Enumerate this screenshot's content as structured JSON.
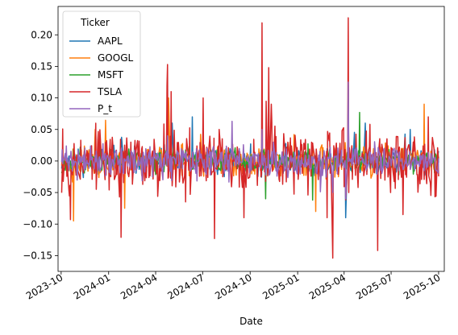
{
  "chart_data": {
    "type": "line",
    "xlabel": "Date",
    "ylabel": "",
    "legend_title": "Ticker",
    "legend_position": "top-left",
    "grid": false,
    "xlim": [
      "2023-09-25",
      "2025-10-12"
    ],
    "ylim": [
      -0.175,
      0.245
    ],
    "x_ticks": [
      {
        "date": "2023-10-01",
        "label": "2023-10"
      },
      {
        "date": "2024-01-01",
        "label": "2024-01"
      },
      {
        "date": "2024-04-01",
        "label": "2024-04"
      },
      {
        "date": "2024-07-01",
        "label": "2024-07"
      },
      {
        "date": "2024-10-01",
        "label": "2024-10"
      },
      {
        "date": "2025-01-01",
        "label": "2025-01"
      },
      {
        "date": "2025-04-01",
        "label": "2025-04"
      },
      {
        "date": "2025-07-01",
        "label": "2025-07"
      },
      {
        "date": "2025-10-01",
        "label": "2025-10"
      }
    ],
    "y_ticks": [
      {
        "value": -0.15,
        "label": "−0.15"
      },
      {
        "value": -0.1,
        "label": "−0.10"
      },
      {
        "value": -0.05,
        "label": "−0.05"
      },
      {
        "value": 0.0,
        "label": "0.00"
      },
      {
        "value": 0.05,
        "label": "0.05"
      },
      {
        "value": 0.1,
        "label": "0.10"
      },
      {
        "value": 0.15,
        "label": "0.15"
      },
      {
        "value": 0.2,
        "label": "0.20"
      }
    ],
    "series": [
      {
        "name": "AAPL",
        "color": "#1f77b4",
        "amp": 0.012,
        "seed": 11,
        "spikes": [
          [
            "2024-05-03",
            0.06
          ],
          [
            "2025-04-09",
            0.12
          ],
          [
            "2025-04-04",
            -0.09
          ],
          [
            "2025-08-07",
            0.05
          ],
          [
            "2024-06-11",
            0.07
          ],
          [
            "2025-05-12",
            0.06
          ]
        ]
      },
      {
        "name": "GOOGL",
        "color": "#ff7f0e",
        "amp": 0.014,
        "seed": 23,
        "spikes": [
          [
            "2023-10-25",
            -0.095
          ],
          [
            "2024-02-01",
            -0.075
          ],
          [
            "2024-04-26",
            0.1
          ],
          [
            "2025-02-05",
            -0.08
          ],
          [
            "2025-04-09",
            0.1
          ],
          [
            "2025-09-03",
            0.09
          ],
          [
            "2023-12-06",
            0.05
          ],
          [
            "2024-07-24",
            -0.05
          ]
        ]
      },
      {
        "name": "MSFT",
        "color": "#2ca02c",
        "amp": 0.011,
        "seed": 37,
        "spikes": [
          [
            "2024-10-31",
            -0.06
          ],
          [
            "2025-05-01",
            0.077
          ],
          [
            "2025-04-09",
            0.1
          ],
          [
            "2025-01-30",
            -0.062
          ]
        ]
      },
      {
        "name": "TSLA",
        "color": "#d62728",
        "amp": 0.03,
        "seed": 53,
        "spikes": [
          [
            "2023-10-19",
            -0.093
          ],
          [
            "2024-01-25",
            -0.121
          ],
          [
            "2024-04-24",
            0.153
          ],
          [
            "2024-04-23",
            0.12
          ],
          [
            "2024-07-02",
            0.1
          ],
          [
            "2024-07-24",
            -0.123
          ],
          [
            "2024-10-24",
            0.219
          ],
          [
            "2024-11-06",
            0.148
          ],
          [
            "2024-11-11",
            0.09
          ],
          [
            "2025-03-10",
            -0.154
          ],
          [
            "2025-04-09",
            0.227
          ],
          [
            "2025-06-05",
            -0.142
          ],
          [
            "2025-02-27",
            -0.09
          ],
          [
            "2025-09-11",
            0.07
          ],
          [
            "2024-05-01",
            0.11
          ],
          [
            "2024-09-19",
            -0.09
          ],
          [
            "2025-07-24",
            -0.085
          ]
        ]
      },
      {
        "name": "P_t",
        "color": "#9467bd",
        "amp": 0.013,
        "seed": 71,
        "spikes": [
          [
            "2025-04-09",
            0.125
          ],
          [
            "2024-10-24",
            0.05
          ],
          [
            "2025-03-10",
            -0.05
          ],
          [
            "2024-04-24",
            0.04
          ],
          [
            "2025-04-04",
            -0.06
          ]
        ]
      }
    ]
  }
}
